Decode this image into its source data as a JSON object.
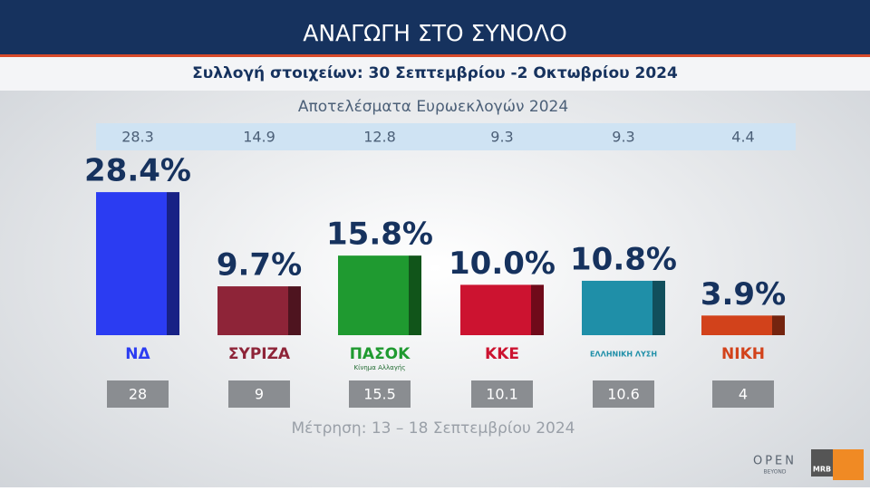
{
  "chart_data": {
    "type": "bar",
    "title": "ΑΝΑΓΩΓΗ ΣΤΟ ΣΥΝΟΛΟ",
    "subtitle": "Συλλογή στοιχείων: 30 Σεπτεμβρίου  -2 Οκτωβρίου 2024",
    "categories": [
      "ΝΔ",
      "ΣΥΡΙΖΑ",
      "ΠΑΣΟΚ",
      "ΚΚΕ",
      "ΕΛΛΗΝΙΚΗ ΛΥΣΗ",
      "ΝΙΚΗ"
    ],
    "colors": [
      "#2b3cf2",
      "#8e2438",
      "#1f9a30",
      "#cc1330",
      "#1f8fa8",
      "#d2421b"
    ],
    "values": [
      28.4,
      9.7,
      15.8,
      10.0,
      10.8,
      3.9
    ],
    "value_labels": [
      "28.4%",
      "9.7%",
      "15.8%",
      "10.0%",
      "10.8%",
      "3.9%"
    ],
    "euroelections": {
      "label": "Αποτελέσματα Ευρωεκλογών 2024",
      "values": [
        28.3,
        14.9,
        12.8,
        9.3,
        9.3,
        4.4
      ]
    },
    "previous": {
      "label": "Μέτρηση: 13 – 18 Σεπτεμβρίου 2024",
      "values": [
        28,
        9,
        15.5,
        10.1,
        10.6,
        4
      ]
    },
    "pasok_subtitle": "Κίνημα Αλλαγής"
  },
  "branding": {
    "channel": "OPEN",
    "tagline": "BEYOND",
    "pollster": "MRB"
  }
}
